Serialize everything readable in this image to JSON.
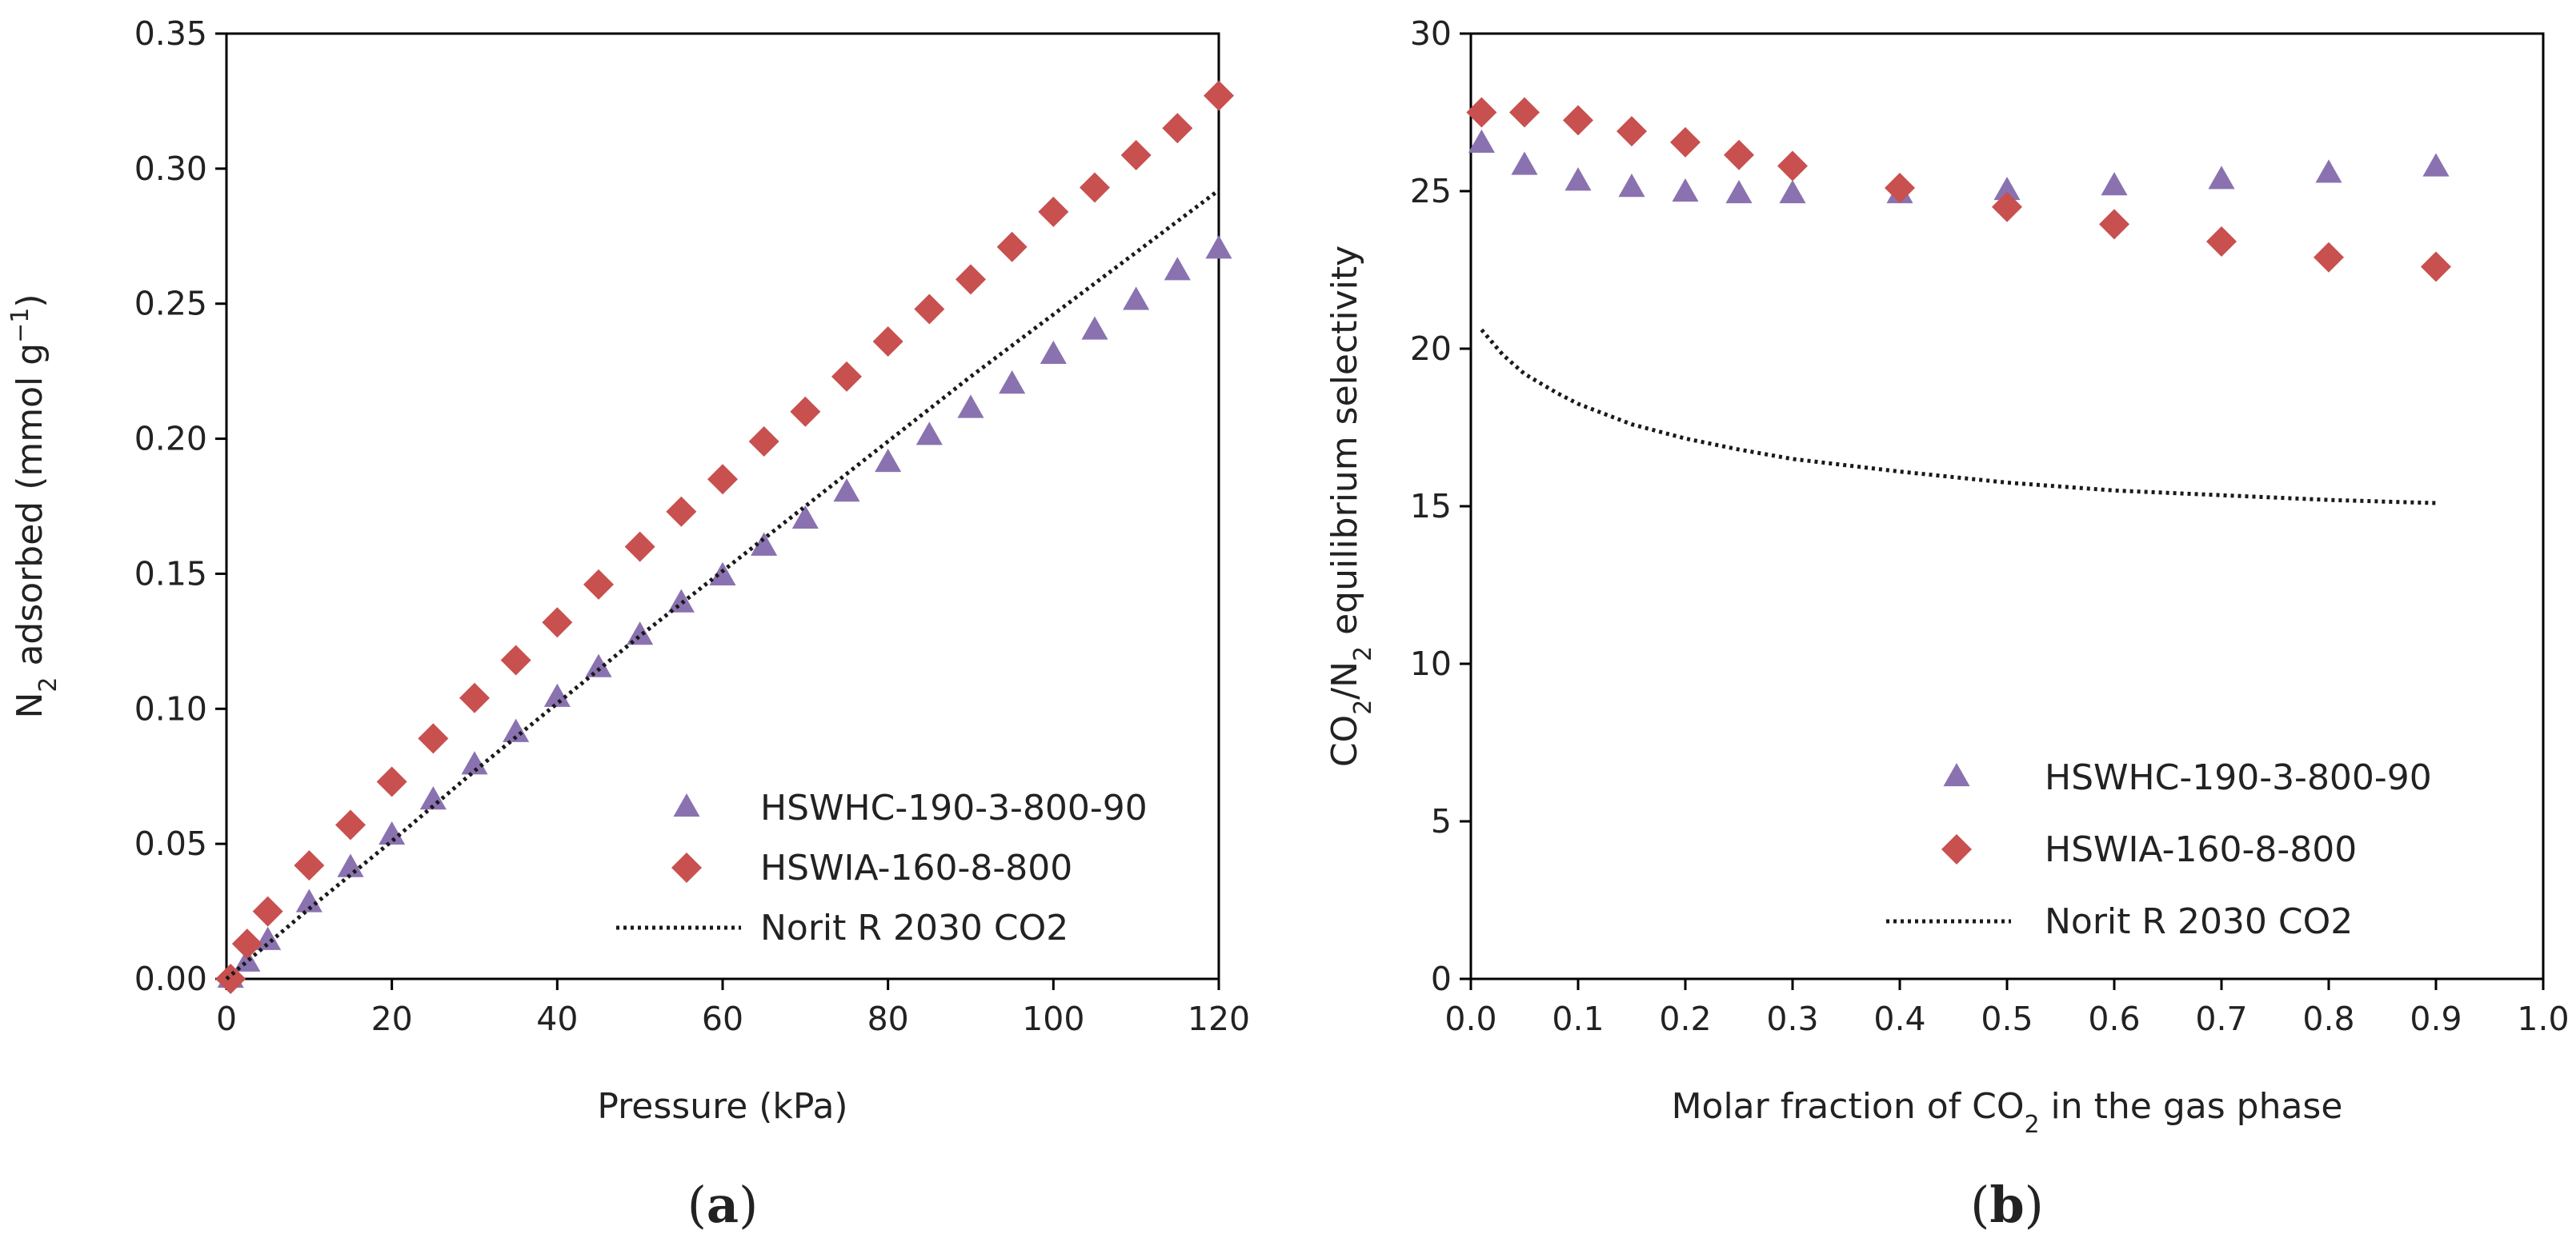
{
  "colors": {
    "triangle": "#8a72b0",
    "diamond": "#c8504f",
    "line": "#1a1a1a",
    "axis": "#000000"
  },
  "chart_data": [
    {
      "panel": "(a)",
      "panel_parts": [
        "(",
        "a",
        ")"
      ],
      "type": "scatter",
      "xlabel": "Pressure (kPa)",
      "ylabel_parts": [
        "N",
        "2",
        " adsorbed (mmol g",
        "−1",
        ")"
      ],
      "xlim": [
        0,
        120
      ],
      "ylim": [
        0,
        0.35
      ],
      "xticks": [
        0,
        20,
        40,
        60,
        80,
        100,
        120
      ],
      "yticks": [
        0,
        0.05,
        0.1,
        0.15,
        0.2,
        0.25,
        0.3,
        0.35
      ],
      "xtick_labels": [
        "0",
        "20",
        "40",
        "60",
        "80",
        "100",
        "120"
      ],
      "ytick_labels": [
        "0.00",
        "0.05",
        "0.10",
        "0.15",
        "0.20",
        "0.25",
        "0.30",
        "0.35"
      ],
      "legend_position": "bottom-right",
      "series": [
        {
          "name": "HSWHC-190-3-800-90",
          "marker": "triangle",
          "x": [
            0.5,
            2.5,
            5,
            10,
            15,
            20,
            25,
            30,
            35,
            40,
            45,
            50,
            55,
            60,
            65,
            70,
            75,
            80,
            85,
            90,
            95,
            100,
            105,
            110,
            115,
            120
          ],
          "y": [
            0.0,
            0.006,
            0.014,
            0.028,
            0.041,
            0.053,
            0.066,
            0.079,
            0.091,
            0.104,
            0.115,
            0.127,
            0.139,
            0.149,
            0.16,
            0.17,
            0.18,
            0.191,
            0.201,
            0.211,
            0.22,
            0.231,
            0.24,
            0.251,
            0.262,
            0.27
          ]
        },
        {
          "name": "HSWIA-160-8-800",
          "marker": "diamond",
          "x": [
            0.5,
            2.5,
            5,
            10,
            15,
            20,
            25,
            30,
            35,
            40,
            45,
            50,
            55,
            60,
            65,
            70,
            75,
            80,
            85,
            90,
            95,
            100,
            105,
            110,
            115,
            120
          ],
          "y": [
            0.0,
            0.013,
            0.025,
            0.042,
            0.057,
            0.073,
            0.089,
            0.104,
            0.118,
            0.132,
            0.146,
            0.16,
            0.173,
            0.185,
            0.199,
            0.21,
            0.223,
            0.236,
            0.248,
            0.259,
            0.271,
            0.284,
            0.293,
            0.305,
            0.315,
            0.327
          ]
        },
        {
          "name": "Norit R 2030 CO2",
          "marker": "dotted-line",
          "x": [
            0,
            10,
            20,
            30,
            40,
            50,
            60,
            70,
            80,
            90,
            100,
            110,
            120
          ],
          "y": [
            0.0,
            0.026,
            0.051,
            0.077,
            0.102,
            0.127,
            0.151,
            0.175,
            0.199,
            0.223,
            0.246,
            0.269,
            0.292
          ]
        }
      ]
    },
    {
      "panel": "(b)",
      "panel_parts": [
        "(",
        "b",
        ")"
      ],
      "type": "scatter",
      "xlabel_parts": [
        "Molar fraction of CO",
        "2",
        " in the gas phase"
      ],
      "ylabel_parts": [
        "CO",
        "2",
        "/N",
        "2",
        " equilibrium selectivity"
      ],
      "xlim": [
        0,
        1.0
      ],
      "ylim": [
        0,
        30
      ],
      "xticks": [
        0,
        0.1,
        0.2,
        0.3,
        0.4,
        0.5,
        0.6,
        0.7,
        0.8,
        0.9,
        1.0
      ],
      "yticks": [
        0,
        5,
        10,
        15,
        20,
        25,
        30
      ],
      "xtick_labels": [
        "0.0",
        "0.1",
        "0.2",
        "0.3",
        "0.4",
        "0.5",
        "0.6",
        "0.7",
        "0.8",
        "0.9",
        "1.0"
      ],
      "ytick_labels": [
        "0",
        "5",
        "10",
        "15",
        "20",
        "25",
        "30"
      ],
      "legend_position": "bottom-right",
      "series": [
        {
          "name": "HSWHC-190-3-800-90",
          "marker": "triangle",
          "x": [
            0.01,
            0.05,
            0.1,
            0.15,
            0.2,
            0.25,
            0.3,
            0.4,
            0.5,
            0.6,
            0.7,
            0.8,
            0.9
          ],
          "y": [
            26.5,
            25.8,
            25.3,
            25.1,
            24.95,
            24.9,
            24.9,
            24.9,
            25.0,
            25.15,
            25.35,
            25.55,
            25.75
          ]
        },
        {
          "name": "HSWIA-160-8-800",
          "marker": "diamond",
          "x": [
            0.01,
            0.05,
            0.1,
            0.15,
            0.2,
            0.25,
            0.3,
            0.4,
            0.5,
            0.6,
            0.7,
            0.8,
            0.9
          ],
          "y": [
            27.5,
            27.5,
            27.25,
            26.9,
            26.55,
            26.15,
            25.8,
            25.1,
            24.5,
            23.95,
            23.4,
            22.9,
            22.6
          ]
        },
        {
          "name": "Norit R 2030 CO2",
          "marker": "dotted-line",
          "x": [
            0.01,
            0.03,
            0.05,
            0.08,
            0.1,
            0.15,
            0.2,
            0.25,
            0.3,
            0.4,
            0.5,
            0.6,
            0.7,
            0.8,
            0.9
          ],
          "y": [
            20.6,
            19.8,
            19.2,
            18.6,
            18.25,
            17.6,
            17.15,
            16.8,
            16.5,
            16.1,
            15.75,
            15.5,
            15.35,
            15.2,
            15.1
          ]
        }
      ]
    }
  ]
}
